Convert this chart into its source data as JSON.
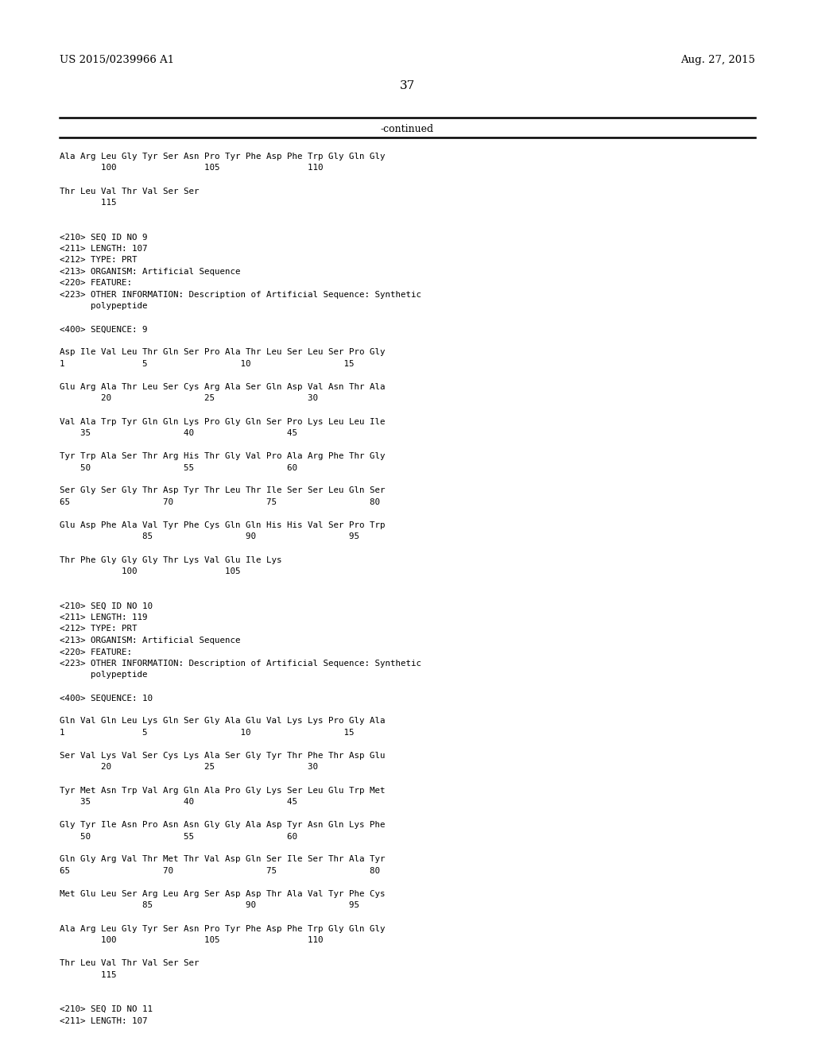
{
  "header_left": "US 2015/0239966 A1",
  "header_right": "Aug. 27, 2015",
  "page_number": "37",
  "continued_label": "-continued",
  "background_color": "#ffffff",
  "text_color": "#000000",
  "content": [
    "Ala Arg Leu Gly Tyr Ser Asn Pro Tyr Phe Asp Phe Trp Gly Gln Gly",
    "        100                 105                 110",
    "",
    "Thr Leu Val Thr Val Ser Ser",
    "        115",
    "",
    "",
    "<210> SEQ ID NO 9",
    "<211> LENGTH: 107",
    "<212> TYPE: PRT",
    "<213> ORGANISM: Artificial Sequence",
    "<220> FEATURE:",
    "<223> OTHER INFORMATION: Description of Artificial Sequence: Synthetic",
    "      polypeptide",
    "",
    "<400> SEQUENCE: 9",
    "",
    "Asp Ile Val Leu Thr Gln Ser Pro Ala Thr Leu Ser Leu Ser Pro Gly",
    "1               5                  10                  15",
    "",
    "Glu Arg Ala Thr Leu Ser Cys Arg Ala Ser Gln Asp Val Asn Thr Ala",
    "        20                  25                  30",
    "",
    "Val Ala Trp Tyr Gln Gln Lys Pro Gly Gln Ser Pro Lys Leu Leu Ile",
    "    35                  40                  45",
    "",
    "Tyr Trp Ala Ser Thr Arg His Thr Gly Val Pro Ala Arg Phe Thr Gly",
    "    50                  55                  60",
    "",
    "Ser Gly Ser Gly Thr Asp Tyr Thr Leu Thr Ile Ser Ser Leu Gln Ser",
    "65                  70                  75                  80",
    "",
    "Glu Asp Phe Ala Val Tyr Phe Cys Gln Gln His His Val Ser Pro Trp",
    "                85                  90                  95",
    "",
    "Thr Phe Gly Gly Gly Thr Lys Val Glu Ile Lys",
    "            100                 105",
    "",
    "",
    "<210> SEQ ID NO 10",
    "<211> LENGTH: 119",
    "<212> TYPE: PRT",
    "<213> ORGANISM: Artificial Sequence",
    "<220> FEATURE:",
    "<223> OTHER INFORMATION: Description of Artificial Sequence: Synthetic",
    "      polypeptide",
    "",
    "<400> SEQUENCE: 10",
    "",
    "Gln Val Gln Leu Lys Gln Ser Gly Ala Glu Val Lys Lys Pro Gly Ala",
    "1               5                  10                  15",
    "",
    "Ser Val Lys Val Ser Cys Lys Ala Ser Gly Tyr Thr Phe Thr Asp Glu",
    "        20                  25                  30",
    "",
    "Tyr Met Asn Trp Val Arg Gln Ala Pro Gly Lys Ser Leu Glu Trp Met",
    "    35                  40                  45",
    "",
    "Gly Tyr Ile Asn Pro Asn Asn Gly Gly Ala Asp Tyr Asn Gln Lys Phe",
    "    50                  55                  60",
    "",
    "Gln Gly Arg Val Thr Met Thr Val Asp Gln Ser Ile Ser Thr Ala Tyr",
    "65                  70                  75                  80",
    "",
    "Met Glu Leu Ser Arg Leu Arg Ser Asp Asp Thr Ala Val Tyr Phe Cys",
    "                85                  90                  95",
    "",
    "Ala Arg Leu Gly Tyr Ser Asn Pro Tyr Phe Asp Phe Trp Gly Gln Gly",
    "        100                 105                 110",
    "",
    "Thr Leu Val Thr Val Ser Ser",
    "        115",
    "",
    "",
    "<210> SEQ ID NO 11",
    "<211> LENGTH: 107"
  ]
}
